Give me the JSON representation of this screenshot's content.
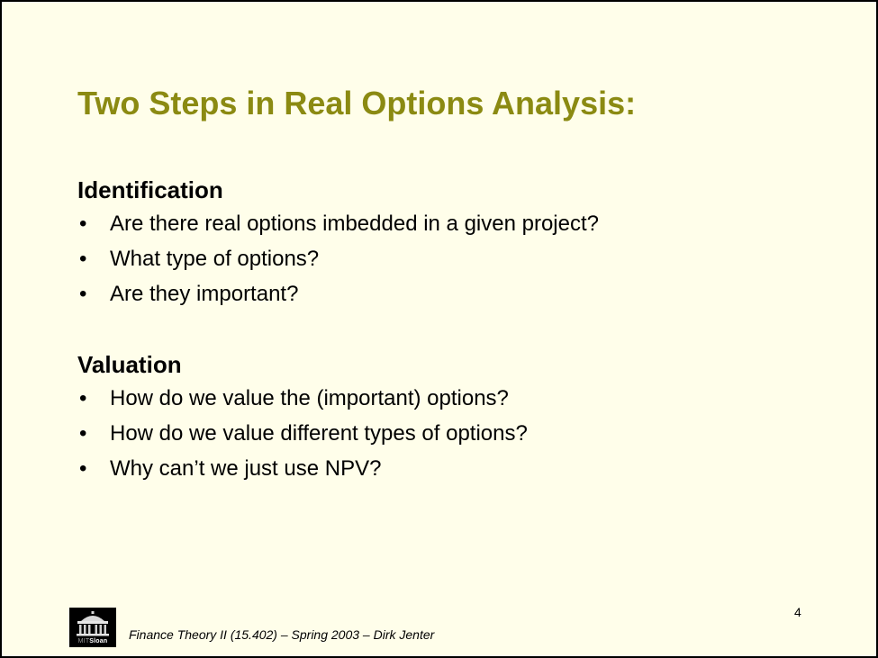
{
  "slide": {
    "title": "Two Steps in Real Options Analysis:",
    "sections": [
      {
        "heading": "Identification",
        "bullets": [
          "Are there real options imbedded in a given project?",
          "What type of options?",
          "Are they important?"
        ]
      },
      {
        "heading": "Valuation",
        "bullets": [
          "How do we value the (important) options?",
          "How do we value different types of options?",
          "Why can’t we just use NPV?"
        ]
      }
    ],
    "bullet_symbol": "•",
    "page_number": "4",
    "footer": "Finance Theory II (15.402) – Spring 2003 – Dirk Jenter",
    "logo": {
      "icon": "mit-dome-icon",
      "text_mit": "MIT",
      "text_sloan": "Sloan"
    }
  },
  "colors": {
    "background": "#fffeea",
    "title": "#8b8a12",
    "text": "#000000",
    "border": "#000000"
  }
}
